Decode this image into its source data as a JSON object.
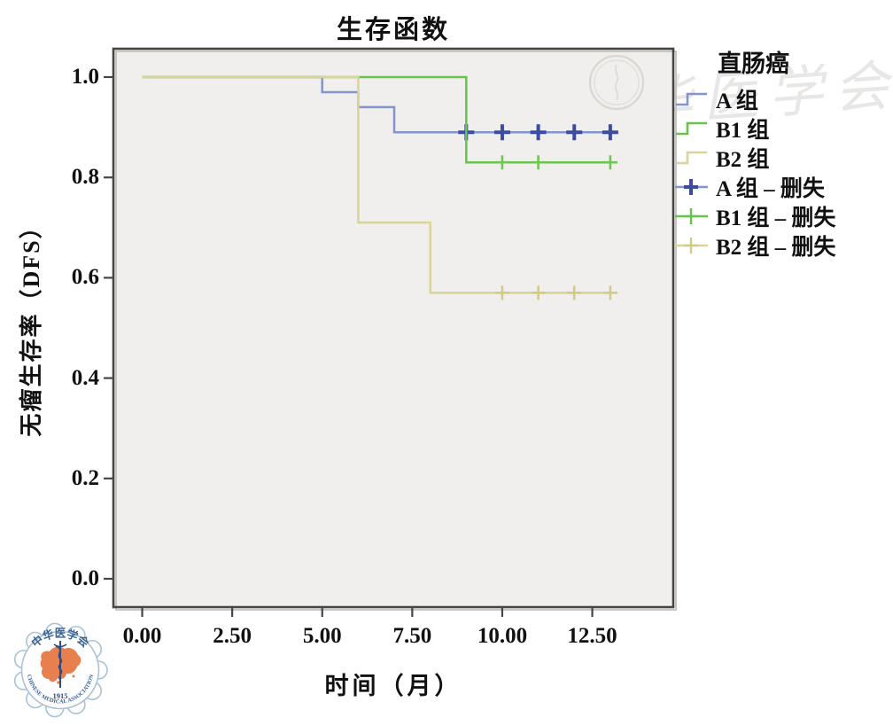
{
  "watermarks": {
    "calligraphy_text": "中华医学会",
    "cma_logo": {
      "top_text": "中华医学会",
      "bottom_text": "CHINESE MEDICAL ASSOCIATION",
      "year": "1915"
    }
  },
  "chart_data": {
    "type": "line",
    "subtype": "kaplan_meier_step",
    "title": "生存函数",
    "xlabel": "时间（月）",
    "ylabel": "无瘤生存率（DFS）",
    "xlim": [
      -0.8,
      14.75
    ],
    "ylim": [
      -0.0565,
      1.0565
    ],
    "xticks": {
      "values": [
        0,
        2.5,
        5,
        7.5,
        10,
        12.5
      ],
      "labels": [
        "0.00",
        "2.50",
        "5.00",
        "7.50",
        "10.00",
        "12.50"
      ]
    },
    "yticks": {
      "values": [
        0,
        0.2,
        0.4,
        0.6,
        0.8,
        1.0
      ],
      "labels": [
        "0.0",
        "0.2",
        "0.4",
        "0.6",
        "0.8",
        "1.0"
      ]
    },
    "grid": false,
    "plot_background": "#f1efed",
    "frame_color": "#454545",
    "legend": {
      "title": "直肠癌",
      "position": "right",
      "entries": [
        {
          "label": "A 组",
          "symbol": "step",
          "color": "#8494ce"
        },
        {
          "label": "B1 组",
          "symbol": "step",
          "color": "#68c24d"
        },
        {
          "label": "B2 组",
          "symbol": "step",
          "color": "#dbd49a"
        },
        {
          "label": "A 组 – 删失",
          "symbol": "censor",
          "line_color": "#8494ce",
          "color": "#3b4da0",
          "bold": true
        },
        {
          "label": "B1 组 – 删失",
          "symbol": "censor",
          "line_color": "#68c24d",
          "color": "#68c24d",
          "bold": false
        },
        {
          "label": "B2 组 – 删失",
          "symbol": "censor",
          "line_color": "#dbd49a",
          "color": "#d2cb85",
          "bold": false
        }
      ]
    },
    "series": [
      {
        "name": "A 组",
        "color": "#8494ce",
        "censor_color": "#3b4da0",
        "censor_stroke": 4,
        "points": [
          [
            0,
            1.0
          ],
          [
            5,
            1.0
          ],
          [
            5,
            0.97
          ],
          [
            6,
            0.97
          ],
          [
            6,
            0.94
          ],
          [
            7,
            0.94
          ],
          [
            7,
            0.89
          ],
          [
            13.2,
            0.89
          ]
        ],
        "censored": {
          "x": [
            9,
            10,
            11,
            12,
            13
          ],
          "y": 0.89
        }
      },
      {
        "name": "B1 组",
        "color": "#68c24d",
        "censor_color": "#6ec754",
        "censor_stroke": 2.6,
        "points": [
          [
            0,
            1.0
          ],
          [
            9,
            1.0
          ],
          [
            9,
            0.83
          ],
          [
            13.2,
            0.83
          ]
        ],
        "censored": {
          "x": [
            10,
            11,
            13
          ],
          "y": 0.83
        }
      },
      {
        "name": "B2 组",
        "color": "#dbd49a",
        "censor_color": "#d2cb85",
        "censor_stroke": 2.6,
        "points": [
          [
            0,
            1.0
          ],
          [
            6,
            1.0
          ],
          [
            6,
            0.71
          ],
          [
            8,
            0.71
          ],
          [
            8,
            0.57
          ],
          [
            13.2,
            0.57
          ]
        ],
        "censored": {
          "x": [
            10,
            11,
            12,
            13
          ],
          "y": 0.57
        }
      }
    ]
  }
}
